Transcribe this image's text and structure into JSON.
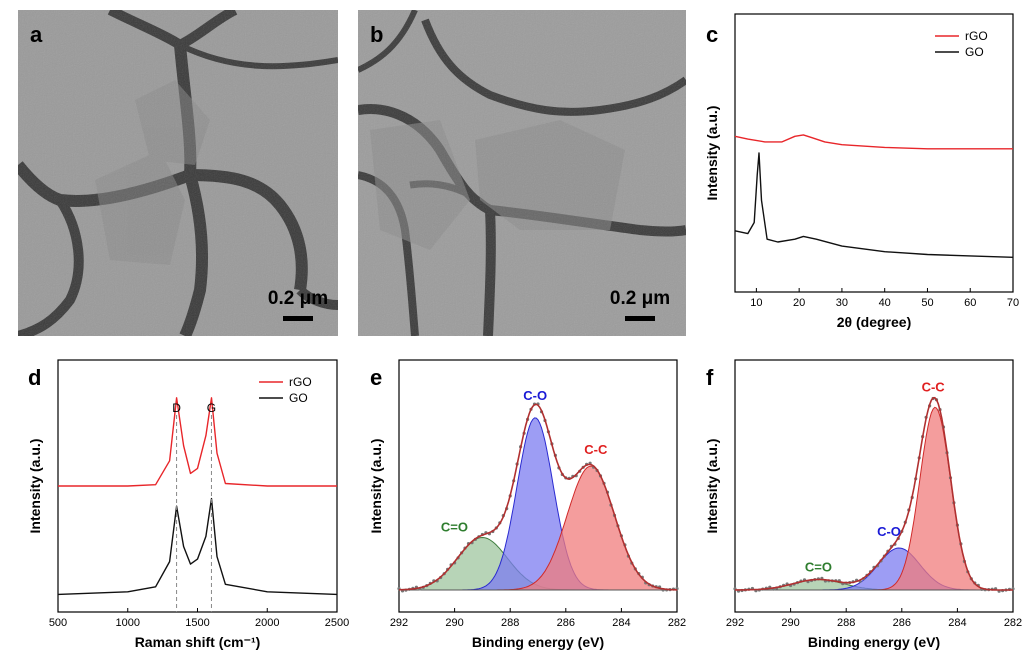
{
  "panels": {
    "a": {
      "label": "a",
      "scale_bar": "0.2 μm"
    },
    "b": {
      "label": "b",
      "scale_bar": "0.2 μm"
    },
    "c": {
      "label": "c"
    },
    "d": {
      "label": "d"
    },
    "e": {
      "label": "e"
    },
    "f": {
      "label": "f"
    }
  },
  "colors": {
    "rgo": "#e8262a",
    "go": "#111111",
    "c_c": "#f07c7c",
    "c_o": "#7c7cf0",
    "c_eq_o": "#9fc59f",
    "envelope": "#b03030",
    "data_dot": "#777777"
  },
  "chart_data": [
    {
      "id": "c",
      "type": "line",
      "title": "",
      "xlabel": "2θ (degree)",
      "ylabel": "Intensity (a.u.)",
      "xlim": [
        5,
        70
      ],
      "xticks": [
        "10",
        "20",
        "30",
        "40",
        "50",
        "60",
        "70"
      ],
      "legend": {
        "position": "top-right",
        "entries": [
          "rGO",
          "GO"
        ]
      },
      "series": [
        {
          "name": "rGO",
          "x": [
            5,
            8,
            12,
            16,
            19,
            21,
            23,
            26,
            30,
            40,
            50,
            60,
            70
          ],
          "y": [
            0.56,
            0.55,
            0.54,
            0.54,
            0.56,
            0.565,
            0.555,
            0.54,
            0.53,
            0.52,
            0.515,
            0.515,
            0.515
          ]
        },
        {
          "name": "GO",
          "x": [
            5,
            8,
            9.5,
            10.2,
            10.6,
            11.2,
            12.5,
            15,
            19,
            21,
            24,
            30,
            40,
            50,
            60,
            70
          ],
          "y": [
            0.22,
            0.21,
            0.25,
            0.42,
            0.5,
            0.33,
            0.19,
            0.18,
            0.19,
            0.2,
            0.19,
            0.165,
            0.145,
            0.135,
            0.13,
            0.125
          ]
        }
      ]
    },
    {
      "id": "d",
      "type": "line",
      "title": "",
      "xlabel": "Raman shift (cm⁻¹)",
      "ylabel": "Intensity (a.u.)",
      "xlim": [
        500,
        2500
      ],
      "xticks": [
        "500",
        "1000",
        "1500",
        "2000",
        "2500"
      ],
      "legend": {
        "position": "top-right",
        "entries": [
          "rGO",
          "GO"
        ]
      },
      "annotations": [
        {
          "text": "D",
          "x": 1350
        },
        {
          "text": "G",
          "x": 1600
        }
      ],
      "series": [
        {
          "name": "rGO",
          "x": [
            500,
            1000,
            1200,
            1300,
            1350,
            1400,
            1450,
            1500,
            1560,
            1600,
            1640,
            1700,
            2000,
            2500
          ],
          "y": [
            0.5,
            0.5,
            0.505,
            0.6,
            0.85,
            0.66,
            0.55,
            0.57,
            0.7,
            0.85,
            0.63,
            0.51,
            0.5,
            0.5
          ]
        },
        {
          "name": "GO",
          "x": [
            500,
            1000,
            1200,
            1300,
            1350,
            1400,
            1450,
            1500,
            1560,
            1600,
            1640,
            1700,
            2000,
            2500
          ],
          "y": [
            0.07,
            0.08,
            0.1,
            0.2,
            0.42,
            0.26,
            0.19,
            0.21,
            0.3,
            0.45,
            0.22,
            0.11,
            0.08,
            0.07
          ]
        }
      ]
    },
    {
      "id": "e",
      "type": "area",
      "title": "",
      "xlabel": "Binding energy (eV)",
      "ylabel": "Intensity (a.u.)",
      "xlim": [
        292,
        282
      ],
      "xticks": [
        "292",
        "290",
        "288",
        "286",
        "284",
        "282"
      ],
      "components": [
        {
          "name": "C=O",
          "center": 289.0,
          "sigma": 0.9,
          "height": 0.25
        },
        {
          "name": "C-O",
          "center": 287.1,
          "sigma": 0.65,
          "height": 0.82
        },
        {
          "name": "C-C",
          "center": 285.1,
          "sigma": 0.85,
          "height": 0.59
        }
      ],
      "labels": [
        "C=O",
        "C-O",
        "C-C"
      ]
    },
    {
      "id": "f",
      "type": "area",
      "title": "",
      "xlabel": "Binding energy (eV)",
      "ylabel": "Intensity (a.u.)",
      "xlim": [
        292,
        282
      ],
      "xticks": [
        "292",
        "290",
        "288",
        "286",
        "284",
        "282"
      ],
      "components": [
        {
          "name": "C=O",
          "center": 289.0,
          "sigma": 0.9,
          "height": 0.05
        },
        {
          "name": "C-O",
          "center": 286.1,
          "sigma": 0.75,
          "height": 0.2
        },
        {
          "name": "C-C",
          "center": 284.8,
          "sigma": 0.55,
          "height": 0.87
        }
      ],
      "labels": [
        "C=O",
        "C-O",
        "C-C"
      ]
    }
  ]
}
